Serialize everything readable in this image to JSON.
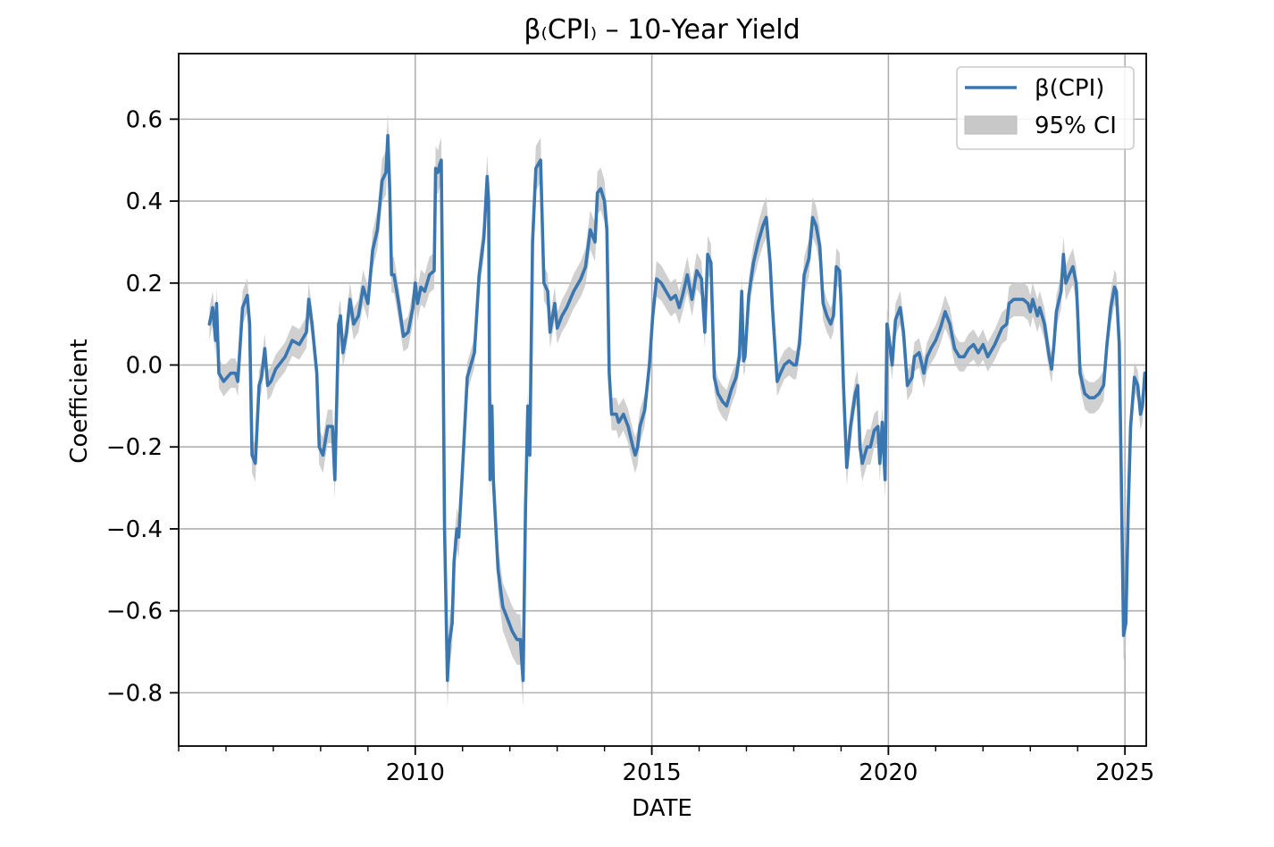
{
  "chart_data": {
    "type": "line",
    "title": "β₍CPI₎ – 10-Year Yield",
    "xlabel": "DATE",
    "ylabel": "Coefficient",
    "x_ticks": [
      2010,
      2015,
      2020,
      2025
    ],
    "y_ticks": [
      -0.8,
      -0.6,
      -0.4,
      -0.2,
      0.0,
      0.2,
      0.4,
      0.6
    ],
    "y_tick_labels": [
      "−0.8",
      "−0.6",
      "−0.4",
      "−0.2",
      "0.0",
      "0.2",
      "0.4",
      "0.6"
    ],
    "xlim": [
      2005.0,
      2025.45
    ],
    "ylim": [
      -0.93,
      0.76
    ],
    "grid": true,
    "legend_position": "top-right",
    "legend": [
      {
        "label": "β(CPI)",
        "kind": "line"
      },
      {
        "label": "95% CI",
        "kind": "band"
      }
    ],
    "colors": {
      "line": "#3a76b0",
      "band": "#c8c8c8",
      "grid": "#b0b0b0"
    },
    "series": [
      {
        "name": "β(CPI)",
        "ci_halfwidth": 0.035,
        "points": [
          [
            2005.65,
            0.1
          ],
          [
            2005.72,
            0.14
          ],
          [
            2005.78,
            0.06
          ],
          [
            2005.8,
            0.15
          ],
          [
            2005.85,
            -0.02
          ],
          [
            2005.95,
            -0.04
          ],
          [
            2006.1,
            -0.02
          ],
          [
            2006.2,
            -0.02
          ],
          [
            2006.25,
            -0.04
          ],
          [
            2006.35,
            0.14
          ],
          [
            2006.45,
            0.17
          ],
          [
            2006.5,
            0.1
          ],
          [
            2006.55,
            -0.22
          ],
          [
            2006.62,
            -0.24
          ],
          [
            2006.7,
            -0.05
          ],
          [
            2006.75,
            -0.03
          ],
          [
            2006.82,
            0.04
          ],
          [
            2006.88,
            -0.05
          ],
          [
            2006.95,
            -0.04
          ],
          [
            2007.05,
            -0.01
          ],
          [
            2007.25,
            0.02
          ],
          [
            2007.4,
            0.06
          ],
          [
            2007.55,
            0.05
          ],
          [
            2007.7,
            0.08
          ],
          [
            2007.75,
            0.16
          ],
          [
            2007.82,
            0.1
          ],
          [
            2007.92,
            -0.02
          ],
          [
            2007.97,
            -0.2
          ],
          [
            2008.05,
            -0.22
          ],
          [
            2008.15,
            -0.15
          ],
          [
            2008.25,
            -0.15
          ],
          [
            2008.3,
            -0.28
          ],
          [
            2008.38,
            0.1
          ],
          [
            2008.42,
            0.12
          ],
          [
            2008.47,
            0.03
          ],
          [
            2008.55,
            0.08
          ],
          [
            2008.62,
            0.16
          ],
          [
            2008.7,
            0.1
          ],
          [
            2008.8,
            0.12
          ],
          [
            2008.9,
            0.19
          ],
          [
            2009.0,
            0.15
          ],
          [
            2009.1,
            0.28
          ],
          [
            2009.2,
            0.33
          ],
          [
            2009.3,
            0.45
          ],
          [
            2009.38,
            0.47
          ],
          [
            2009.42,
            0.56
          ],
          [
            2009.46,
            0.43
          ],
          [
            2009.5,
            0.22
          ],
          [
            2009.55,
            0.22
          ],
          [
            2009.65,
            0.15
          ],
          [
            2009.75,
            0.07
          ],
          [
            2009.85,
            0.08
          ],
          [
            2009.95,
            0.14
          ],
          [
            2010.0,
            0.2
          ],
          [
            2010.05,
            0.15
          ],
          [
            2010.12,
            0.19
          ],
          [
            2010.2,
            0.18
          ],
          [
            2010.3,
            0.22
          ],
          [
            2010.4,
            0.23
          ],
          [
            2010.43,
            0.48
          ],
          [
            2010.48,
            0.47
          ],
          [
            2010.52,
            0.49
          ],
          [
            2010.55,
            0.5
          ],
          [
            2010.58,
            0.15
          ],
          [
            2010.62,
            -0.4
          ],
          [
            2010.68,
            -0.77
          ],
          [
            2010.72,
            -0.68
          ],
          [
            2010.78,
            -0.63
          ],
          [
            2010.82,
            -0.48
          ],
          [
            2010.88,
            -0.4
          ],
          [
            2010.92,
            -0.42
          ],
          [
            2011.0,
            -0.25
          ],
          [
            2011.1,
            -0.03
          ],
          [
            2011.25,
            0.03
          ],
          [
            2011.35,
            0.22
          ],
          [
            2011.45,
            0.31
          ],
          [
            2011.52,
            0.46
          ],
          [
            2011.55,
            0.4
          ],
          [
            2011.58,
            -0.28
          ],
          [
            2011.62,
            -0.1
          ],
          [
            2011.65,
            -0.28
          ],
          [
            2011.75,
            -0.5
          ],
          [
            2011.85,
            -0.59
          ],
          [
            2011.95,
            -0.62
          ],
          [
            2012.05,
            -0.65
          ],
          [
            2012.15,
            -0.67
          ],
          [
            2012.22,
            -0.67
          ],
          [
            2012.28,
            -0.77
          ],
          [
            2012.33,
            -0.35
          ],
          [
            2012.38,
            -0.1
          ],
          [
            2012.42,
            -0.22
          ],
          [
            2012.48,
            0.3
          ],
          [
            2012.55,
            0.48
          ],
          [
            2012.65,
            0.5
          ],
          [
            2012.72,
            0.2
          ],
          [
            2012.8,
            0.18
          ],
          [
            2012.85,
            0.08
          ],
          [
            2012.95,
            0.15
          ],
          [
            2013.0,
            0.09
          ],
          [
            2013.1,
            0.12
          ],
          [
            2013.2,
            0.14
          ],
          [
            2013.35,
            0.18
          ],
          [
            2013.5,
            0.21
          ],
          [
            2013.6,
            0.24
          ],
          [
            2013.7,
            0.33
          ],
          [
            2013.8,
            0.3
          ],
          [
            2013.85,
            0.42
          ],
          [
            2013.92,
            0.43
          ],
          [
            2014.0,
            0.4
          ],
          [
            2014.05,
            0.33
          ],
          [
            2014.1,
            -0.02
          ],
          [
            2014.15,
            -0.12
          ],
          [
            2014.25,
            -0.12
          ],
          [
            2014.3,
            -0.14
          ],
          [
            2014.4,
            -0.12
          ],
          [
            2014.5,
            -0.15
          ],
          [
            2014.6,
            -0.2
          ],
          [
            2014.65,
            -0.22
          ],
          [
            2014.7,
            -0.2
          ],
          [
            2014.75,
            -0.15
          ],
          [
            2014.85,
            -0.11
          ],
          [
            2014.95,
            0.0
          ],
          [
            2015.02,
            0.12
          ],
          [
            2015.1,
            0.21
          ],
          [
            2015.2,
            0.2
          ],
          [
            2015.3,
            0.18
          ],
          [
            2015.4,
            0.16
          ],
          [
            2015.5,
            0.17
          ],
          [
            2015.58,
            0.14
          ],
          [
            2015.65,
            0.17
          ],
          [
            2015.75,
            0.22
          ],
          [
            2015.85,
            0.16
          ],
          [
            2015.95,
            0.23
          ],
          [
            2016.05,
            0.21
          ],
          [
            2016.12,
            0.08
          ],
          [
            2016.18,
            0.27
          ],
          [
            2016.25,
            0.25
          ],
          [
            2016.32,
            -0.03
          ],
          [
            2016.4,
            -0.07
          ],
          [
            2016.5,
            -0.09
          ],
          [
            2016.58,
            -0.1
          ],
          [
            2016.68,
            -0.06
          ],
          [
            2016.78,
            -0.03
          ],
          [
            2016.85,
            0.02
          ],
          [
            2016.9,
            0.18
          ],
          [
            2016.94,
            0.01
          ],
          [
            2016.97,
            0.02
          ],
          [
            2017.05,
            0.17
          ],
          [
            2017.15,
            0.25
          ],
          [
            2017.25,
            0.3
          ],
          [
            2017.35,
            0.34
          ],
          [
            2017.42,
            0.36
          ],
          [
            2017.5,
            0.25
          ],
          [
            2017.55,
            0.14
          ],
          [
            2017.65,
            -0.04
          ],
          [
            2017.72,
            -0.02
          ],
          [
            2017.8,
            0.0
          ],
          [
            2017.9,
            0.01
          ],
          [
            2018.0,
            0.0
          ],
          [
            2018.05,
            0.0
          ],
          [
            2018.12,
            0.05
          ],
          [
            2018.22,
            0.22
          ],
          [
            2018.32,
            0.26
          ],
          [
            2018.4,
            0.36
          ],
          [
            2018.47,
            0.34
          ],
          [
            2018.55,
            0.29
          ],
          [
            2018.62,
            0.15
          ],
          [
            2018.7,
            0.12
          ],
          [
            2018.78,
            0.1
          ],
          [
            2018.84,
            0.12
          ],
          [
            2018.9,
            0.24
          ],
          [
            2018.97,
            0.23
          ],
          [
            2019.0,
            0.15
          ],
          [
            2019.05,
            -0.05
          ],
          [
            2019.12,
            -0.25
          ],
          [
            2019.2,
            -0.15
          ],
          [
            2019.3,
            -0.07
          ],
          [
            2019.35,
            -0.05
          ],
          [
            2019.4,
            -0.2
          ],
          [
            2019.45,
            -0.24
          ],
          [
            2019.55,
            -0.2
          ],
          [
            2019.62,
            -0.2
          ],
          [
            2019.7,
            -0.16
          ],
          [
            2019.78,
            -0.15
          ],
          [
            2019.82,
            -0.24
          ],
          [
            2019.87,
            -0.14
          ],
          [
            2019.93,
            -0.28
          ],
          [
            2019.97,
            0.1
          ],
          [
            2020.02,
            0.06
          ],
          [
            2020.08,
            0.0
          ],
          [
            2020.15,
            0.11
          ],
          [
            2020.25,
            0.14
          ],
          [
            2020.32,
            0.08
          ],
          [
            2020.4,
            -0.05
          ],
          [
            2020.5,
            -0.03
          ],
          [
            2020.55,
            0.02
          ],
          [
            2020.65,
            0.03
          ],
          [
            2020.75,
            -0.02
          ],
          [
            2020.82,
            0.02
          ],
          [
            2020.9,
            0.04
          ],
          [
            2021.0,
            0.06
          ],
          [
            2021.1,
            0.09
          ],
          [
            2021.2,
            0.13
          ],
          [
            2021.3,
            0.1
          ],
          [
            2021.4,
            0.04
          ],
          [
            2021.5,
            0.02
          ],
          [
            2021.6,
            0.02
          ],
          [
            2021.7,
            0.04
          ],
          [
            2021.8,
            0.05
          ],
          [
            2021.9,
            0.03
          ],
          [
            2022.0,
            0.05
          ],
          [
            2022.1,
            0.02
          ],
          [
            2022.25,
            0.05
          ],
          [
            2022.4,
            0.09
          ],
          [
            2022.5,
            0.1
          ],
          [
            2022.55,
            0.15
          ],
          [
            2022.65,
            0.16
          ],
          [
            2022.75,
            0.16
          ],
          [
            2022.85,
            0.16
          ],
          [
            2022.95,
            0.15
          ],
          [
            2023.0,
            0.13
          ],
          [
            2023.05,
            0.16
          ],
          [
            2023.15,
            0.12
          ],
          [
            2023.2,
            0.14
          ],
          [
            2023.3,
            0.1
          ],
          [
            2023.4,
            0.02
          ],
          [
            2023.45,
            -0.01
          ],
          [
            2023.5,
            0.05
          ],
          [
            2023.55,
            0.13
          ],
          [
            2023.65,
            0.18
          ],
          [
            2023.7,
            0.27
          ],
          [
            2023.75,
            0.2
          ],
          [
            2023.82,
            0.22
          ],
          [
            2023.9,
            0.24
          ],
          [
            2023.97,
            0.2
          ],
          [
            2024.0,
            0.13
          ],
          [
            2024.05,
            -0.02
          ],
          [
            2024.15,
            -0.07
          ],
          [
            2024.25,
            -0.08
          ],
          [
            2024.35,
            -0.08
          ],
          [
            2024.45,
            -0.07
          ],
          [
            2024.55,
            -0.05
          ],
          [
            2024.62,
            0.05
          ],
          [
            2024.7,
            0.14
          ],
          [
            2024.78,
            0.19
          ],
          [
            2024.82,
            0.18
          ],
          [
            2024.88,
            0.05
          ],
          [
            2024.92,
            -0.25
          ],
          [
            2024.97,
            -0.66
          ],
          [
            2025.02,
            -0.63
          ],
          [
            2025.07,
            -0.35
          ],
          [
            2025.12,
            -0.15
          ],
          [
            2025.2,
            -0.03
          ],
          [
            2025.27,
            -0.05
          ],
          [
            2025.33,
            -0.12
          ],
          [
            2025.37,
            -0.1
          ],
          [
            2025.42,
            -0.02
          ]
        ]
      }
    ]
  }
}
